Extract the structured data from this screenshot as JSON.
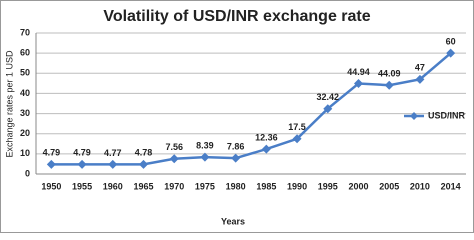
{
  "chart_data": {
    "type": "line",
    "title": "Volatility of USD/INR exchange rate",
    "x_label": "Years",
    "y_label": "Exchange rates per 1 USD",
    "categories": [
      "1950",
      "1955",
      "1960",
      "1965",
      "1970",
      "1975",
      "1980",
      "1985",
      "1990",
      "1995",
      "2000",
      "2005",
      "2010",
      "2014"
    ],
    "series": [
      {
        "name": "USD/INR",
        "color": "#4a7ec7",
        "values": [
          4.79,
          4.79,
          4.77,
          4.78,
          7.56,
          8.39,
          7.86,
          12.36,
          17.5,
          32.42,
          44.94,
          44.09,
          47,
          60
        ]
      }
    ],
    "ylim": [
      0,
      70
    ],
    "yticks": [
      0,
      10,
      20,
      30,
      40,
      50,
      60,
      70
    ],
    "grid": true,
    "legend": "right"
  }
}
